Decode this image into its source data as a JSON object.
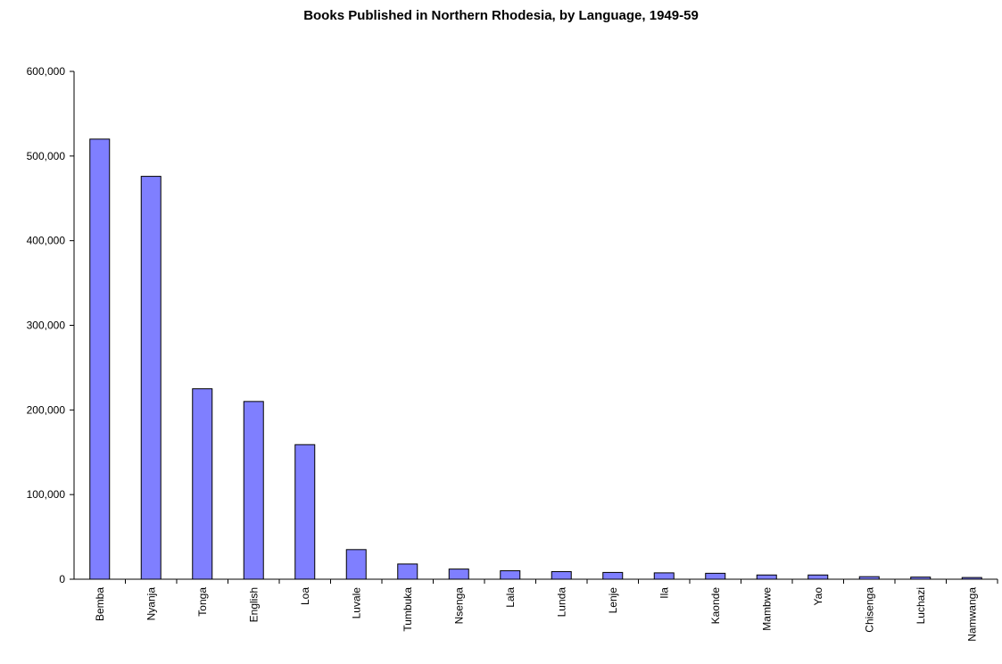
{
  "chart_data": {
    "type": "bar",
    "title": "Books Published in Northern Rhodesia, by Language, 1949-59",
    "xlabel": "",
    "ylabel": "",
    "ylim": [
      0,
      600000
    ],
    "yticks": [
      0,
      100000,
      200000,
      300000,
      400000,
      500000,
      600000
    ],
    "ytick_labels": [
      "0",
      "100,000",
      "200,000",
      "300,000",
      "400,000",
      "500,000",
      "600,000"
    ],
    "categories": [
      "Bemba",
      "Nyanja",
      "Tonga",
      "English",
      "Loa",
      "Luvale",
      "Tumbuka",
      "Nsenga",
      "Lala",
      "Lunda",
      "Lenje",
      "Ila",
      "Kaonde",
      "Mambwe",
      "Yao",
      "Chisenga",
      "Luchazi",
      "Namwanga"
    ],
    "values": [
      520000,
      476000,
      225000,
      210000,
      159000,
      35000,
      18000,
      12000,
      10000,
      9000,
      8000,
      7500,
      7000,
      5000,
      5000,
      3000,
      2500,
      2000
    ],
    "grid": false,
    "legend": "none",
    "bar_color": "#7f7fff",
    "edge_color": "#000000"
  }
}
